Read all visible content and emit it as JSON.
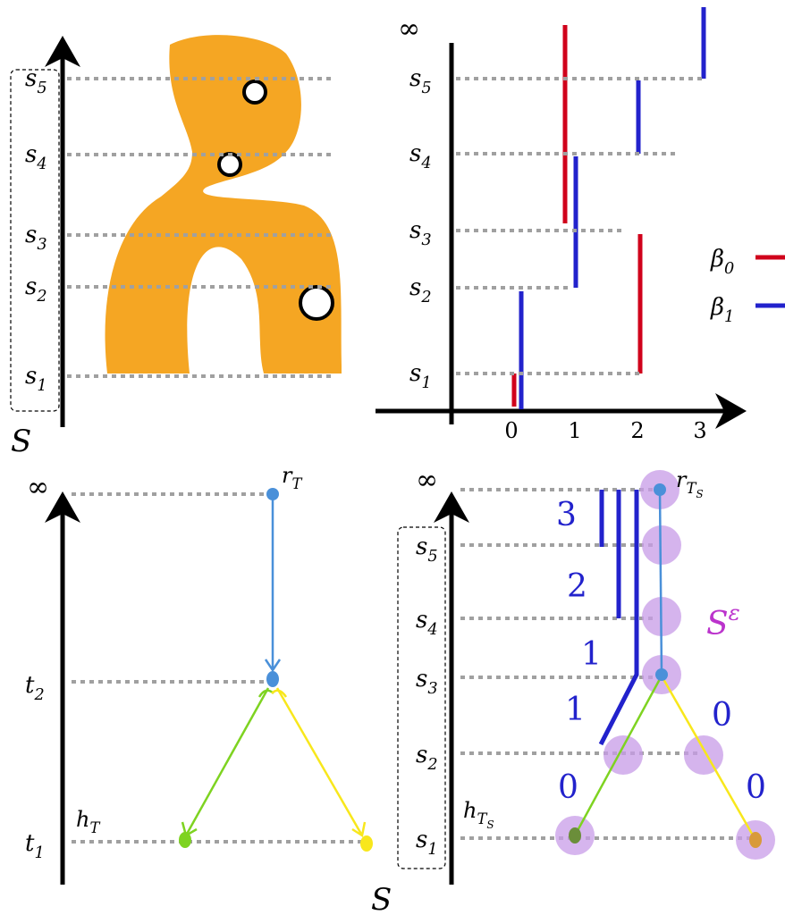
{
  "panel_a": {
    "axis_label": "S",
    "levels": [
      {
        "base": "s",
        "sub": "1"
      },
      {
        "base": "s",
        "sub": "2"
      },
      {
        "base": "s",
        "sub": "3"
      },
      {
        "base": "s",
        "sub": "4"
      },
      {
        "base": "s",
        "sub": "5"
      }
    ]
  },
  "panel_b": {
    "infinity": "∞",
    "levels": [
      {
        "base": "s",
        "sub": "1"
      },
      {
        "base": "s",
        "sub": "2"
      },
      {
        "base": "s",
        "sub": "3"
      },
      {
        "base": "s",
        "sub": "4"
      },
      {
        "base": "s",
        "sub": "5"
      }
    ],
    "x_ticks": [
      "0",
      "1",
      "2",
      "3"
    ],
    "legend": [
      {
        "base": "β",
        "sub": "0"
      },
      {
        "base": "β",
        "sub": "1"
      }
    ]
  },
  "panel_c": {
    "infinity": "∞",
    "levels": [
      {
        "base": "t",
        "sub": "1"
      },
      {
        "base": "t",
        "sub": "2"
      }
    ],
    "root": {
      "base": "r",
      "sub": "T"
    },
    "leaf": {
      "base": "h",
      "sub": "T"
    }
  },
  "panel_d": {
    "infinity": "∞",
    "axis_label": "S",
    "levels": [
      {
        "base": "s",
        "sub": "1"
      },
      {
        "base": "s",
        "sub": "2"
      },
      {
        "base": "s",
        "sub": "3"
      },
      {
        "base": "s",
        "sub": "4"
      },
      {
        "base": "s",
        "sub": "5"
      }
    ],
    "root": {
      "base": "r",
      "sub": "T",
      "subsub": "S"
    },
    "leaf": {
      "base": "h",
      "sub": "T",
      "subsub": "S"
    },
    "epsilon": {
      "base": "S",
      "sup": "ε"
    },
    "counts": [
      "3",
      "2",
      "1",
      "1",
      "0",
      "0",
      "0"
    ]
  }
}
